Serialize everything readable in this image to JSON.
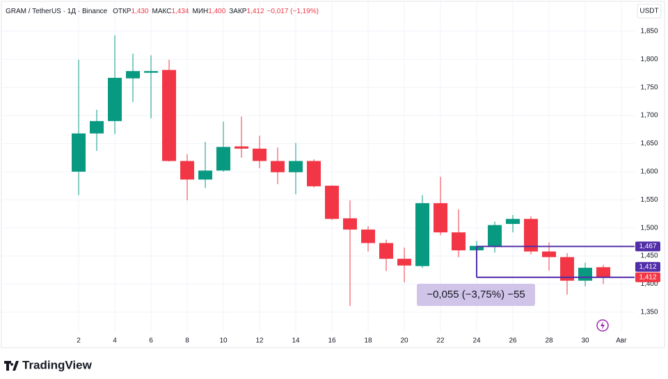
{
  "chart_data": {
    "type": "candlestick",
    "header": {
      "symbol": "GRAM / TetherUS · 1Д · Binance",
      "fields": [
        {
          "name": "ОТКР",
          "value": "1,430"
        },
        {
          "name": "МАКС",
          "value": "1,434"
        },
        {
          "name": "МИН",
          "value": "1,400"
        },
        {
          "name": "ЗАКР",
          "value": "1,412"
        }
      ],
      "change": "−0,017 (−1,19%)"
    },
    "currency": "USDT",
    "brand": "TradingView",
    "x": [
      2,
      3,
      4,
      5,
      6,
      7,
      8,
      9,
      10,
      11,
      12,
      13,
      14,
      15,
      16,
      17,
      18,
      19,
      20,
      21,
      22,
      23,
      24,
      25,
      26,
      27,
      28,
      29,
      30,
      31
    ],
    "open": [
      1.6,
      1.668,
      1.69,
      1.766,
      1.776,
      1.781,
      1.619,
      1.586,
      1.602,
      1.645,
      1.641,
      1.619,
      1.599,
      1.619,
      1.575,
      1.517,
      1.497,
      1.473,
      1.445,
      1.432,
      1.544,
      1.492,
      1.46,
      1.468,
      1.507,
      1.516,
      1.458,
      1.448,
      1.406,
      1.43
    ],
    "high": [
      1.799,
      1.71,
      1.843,
      1.81,
      1.807,
      1.799,
      1.631,
      1.653,
      1.689,
      1.698,
      1.664,
      1.643,
      1.651,
      1.622,
      1.576,
      1.549,
      1.503,
      1.479,
      1.465,
      1.558,
      1.591,
      1.533,
      1.477,
      1.511,
      1.523,
      1.521,
      1.474,
      1.455,
      1.438,
      1.434
    ],
    "low": [
      1.558,
      1.637,
      1.667,
      1.724,
      1.695,
      1.618,
      1.549,
      1.571,
      1.6,
      1.625,
      1.606,
      1.578,
      1.56,
      1.572,
      1.514,
      1.361,
      1.458,
      1.423,
      1.403,
      1.429,
      1.487,
      1.448,
      1.458,
      1.456,
      1.492,
      1.453,
      1.424,
      1.381,
      1.396,
      1.4
    ],
    "close": [
      1.668,
      1.69,
      1.767,
      1.779,
      1.779,
      1.619,
      1.586,
      1.602,
      1.644,
      1.641,
      1.619,
      1.599,
      1.619,
      1.574,
      1.516,
      1.497,
      1.473,
      1.445,
      1.433,
      1.544,
      1.492,
      1.46,
      1.468,
      1.505,
      1.516,
      1.458,
      1.448,
      1.406,
      1.429,
      1.412
    ],
    "up_color": "#089981",
    "down_color": "#f23645",
    "xlim": [
      -2.27,
      32.73
    ],
    "xticks": [
      2,
      4,
      6,
      8,
      10,
      12,
      14,
      16,
      18,
      20,
      22,
      24,
      26,
      28,
      30,
      {
        "value": 32,
        "label": "Авг"
      }
    ],
    "ylim": [
      1.314,
      1.903
    ],
    "yticks": [
      {
        "value": 1.35,
        "label": "1,350"
      },
      {
        "value": 1.4,
        "label": "1,400"
      },
      {
        "value": 1.45,
        "label": "1,450"
      },
      {
        "value": 1.5,
        "label": "1,500"
      },
      {
        "value": 1.55,
        "label": "1,550"
      },
      {
        "value": 1.6,
        "label": "1,600"
      },
      {
        "value": 1.65,
        "label": "1,650"
      },
      {
        "value": 1.7,
        "label": "1,700"
      },
      {
        "value": 1.75,
        "label": "1,750"
      },
      {
        "value": 1.8,
        "label": "1,800"
      },
      {
        "value": 1.85,
        "label": "1,850"
      }
    ],
    "grid": true,
    "measure": {
      "start_x": 24,
      "from": {
        "value": 1.467,
        "label": "1,467"
      },
      "to": {
        "value": 1.412,
        "label": "1,412"
      },
      "label": "−0,055 (−3,75%) −55",
      "color": "#512da8"
    },
    "last_price": {
      "value": 1.412,
      "label": "1,412"
    }
  }
}
